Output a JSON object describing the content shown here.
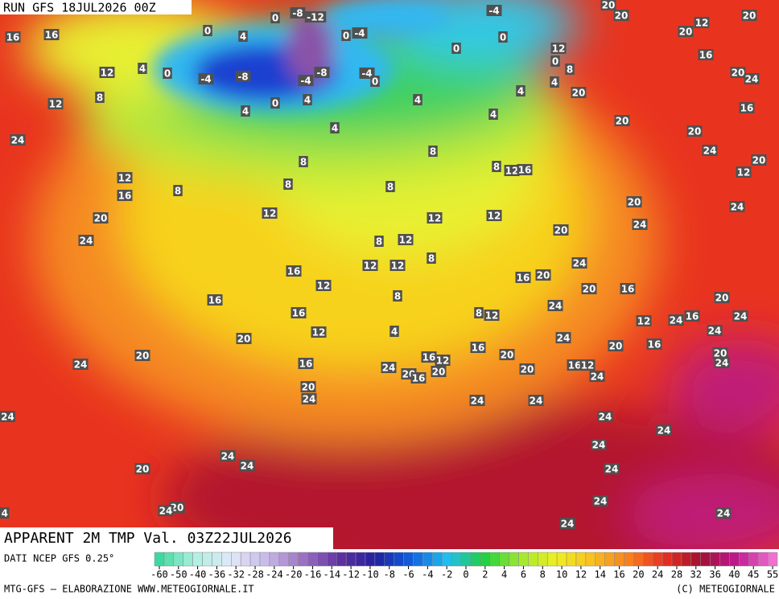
{
  "header": {
    "run": "RUN GFS 18JUL2026 00Z"
  },
  "map": {
    "title": "APPARENT 2M TMP Val. 03Z22JUL2026",
    "labels": [
      16,
      16,
      12,
      4,
      0,
      12,
      8,
      24,
      -4,
      -8,
      4,
      0,
      4,
      0,
      0,
      -8,
      -12,
      0,
      -4,
      -4,
      -8,
      4,
      -4,
      0,
      0,
      -4,
      0,
      12,
      0,
      8,
      4,
      4,
      20,
      20,
      20,
      12,
      20,
      16,
      20,
      20,
      24,
      16,
      20,
      20,
      24,
      20,
      12,
      20,
      24,
      24,
      20,
      24,
      20,
      16,
      20,
      16,
      24,
      20,
      24,
      16,
      24,
      12,
      24,
      24,
      16,
      20,
      20,
      24,
      16,
      12,
      24,
      20,
      20,
      24,
      24,
      24,
      24,
      24,
      24,
      24,
      24,
      24,
      4,
      4,
      4,
      8,
      8,
      12,
      16,
      8,
      8,
      8,
      12,
      16,
      20,
      24,
      12,
      8,
      12,
      12,
      8,
      12,
      8,
      12,
      12,
      16,
      12,
      8,
      16,
      16,
      12,
      8,
      12,
      4,
      20,
      20,
      24,
      16,
      16,
      12,
      16,
      24,
      20,
      16,
      20,
      20,
      24,
      24,
      24,
      24,
      20,
      20,
      24,
      4
    ]
  },
  "legend": {
    "source": "DATI NCEP GFS 0.25°",
    "ticks": [
      -60,
      -50,
      -40,
      -36,
      -32,
      -28,
      -24,
      -20,
      -16,
      -14,
      -12,
      -10,
      -8,
      -6,
      -4,
      -2,
      0,
      2,
      4,
      6,
      8,
      10,
      12,
      14,
      16,
      20,
      24,
      28,
      32,
      36,
      40,
      45,
      55
    ]
  },
  "footer": {
    "credit": "MTG-GFS – ELABORAZIONE WWW.METEOGIORNALE.IT",
    "copyright": "(C) METEOGIORNALE"
  }
}
